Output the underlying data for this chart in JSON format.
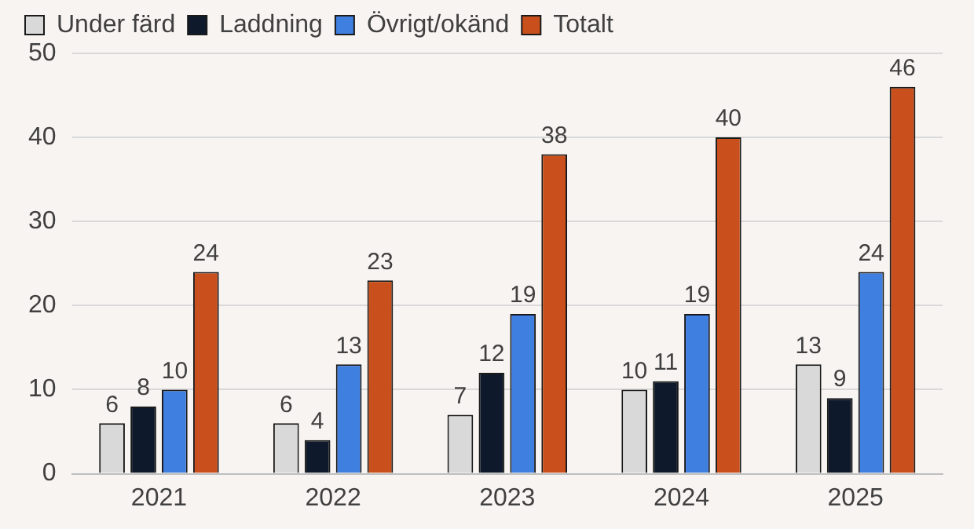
{
  "chart_data": {
    "type": "bar",
    "categories": [
      "2021",
      "2022",
      "2023",
      "2024",
      "2025"
    ],
    "series": [
      {
        "name": "Under färd",
        "color": "#d9d9d9",
        "values": [
          6,
          6,
          7,
          10,
          13
        ]
      },
      {
        "name": "Laddning",
        "color": "#0e1a2b",
        "values": [
          8,
          4,
          12,
          11,
          9
        ]
      },
      {
        "name": "Övrigt/okänd",
        "color": "#3f7fe0",
        "values": [
          10,
          13,
          19,
          19,
          24
        ]
      },
      {
        "name": "Totalt",
        "color": "#c9501c",
        "values": [
          24,
          23,
          38,
          40,
          46
        ]
      }
    ],
    "ylim": [
      0,
      50
    ],
    "yticks": [
      0,
      10,
      20,
      30,
      40,
      50
    ],
    "grid": "y",
    "legend": "top left",
    "data_labels": true
  }
}
